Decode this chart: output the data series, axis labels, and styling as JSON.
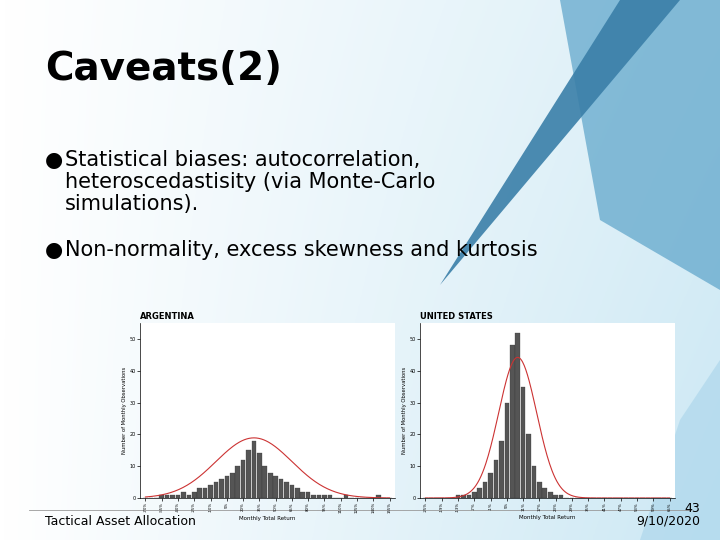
{
  "title": "Caveats(2)",
  "bullet1_line1": "Statistical biases: autocorrelation,",
  "bullet1_line2": "heteroscedastisity (via Monte-Carlo",
  "bullet1_line3": "simulations).",
  "bullet2": "Non-normality, excess skewness and kurtosis",
  "footer_left": "Tactical Asset Allocation",
  "footer_right_top": "43",
  "footer_right_bottom": "9/10/2020",
  "title_fontsize": 28,
  "body_fontsize": 15,
  "footer_fontsize": 9,
  "img_argentina_title": "ARGENTINA",
  "img_us_title": "UNITED STATES",
  "bg_left_color": "#ffffff",
  "bg_right_color": "#cce8f4",
  "spike_color1": "#5ba3c9",
  "spike_color2": "#3a7fa8",
  "spike_light_color": "#a8d4ea",
  "arg_heights": [
    0,
    0,
    0,
    1,
    1,
    1,
    1,
    2,
    1,
    2,
    3,
    3,
    4,
    5,
    6,
    7,
    8,
    10,
    12,
    15,
    18,
    14,
    10,
    8,
    7,
    6,
    5,
    4,
    3,
    2,
    2,
    1,
    1,
    1,
    1,
    0,
    0,
    1,
    0,
    0,
    0,
    0,
    0,
    1,
    0,
    0
  ],
  "us_heights": [
    0,
    0,
    0,
    0,
    0,
    0,
    1,
    1,
    1,
    2,
    3,
    5,
    8,
    12,
    18,
    30,
    48,
    52,
    35,
    20,
    10,
    5,
    3,
    2,
    1,
    1,
    0,
    0,
    0,
    0,
    0,
    0,
    0,
    0,
    0,
    0,
    0,
    0,
    0,
    0,
    0,
    0,
    0,
    0,
    0,
    0
  ]
}
